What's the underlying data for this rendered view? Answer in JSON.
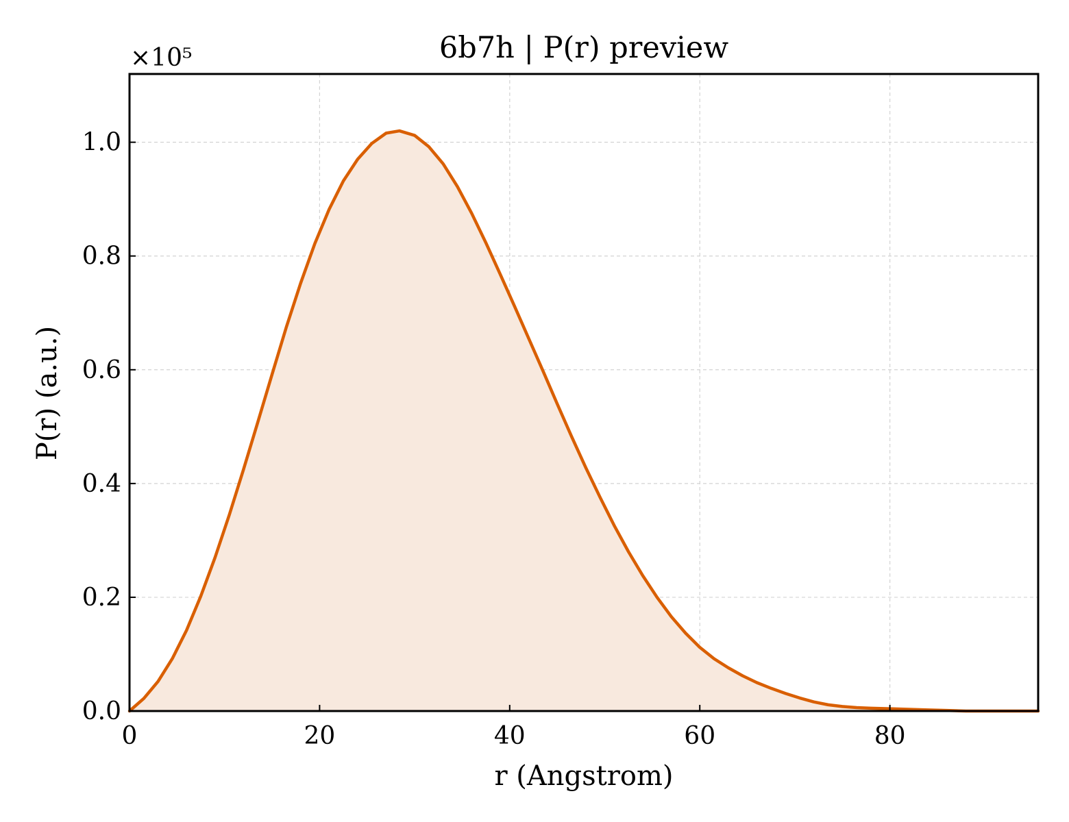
{
  "chart_data": {
    "type": "area",
    "title": "6b7h | P(r) preview",
    "xlabel": "r (Angstrom)",
    "ylabel": "P(r) (a.u.)",
    "y_multiplier_label": "×10⁵",
    "y_scale_factor": 100000,
    "xlim": [
      0,
      95.6
    ],
    "ylim": [
      0,
      1.12
    ],
    "xticks": [
      0,
      20,
      40,
      60,
      80
    ],
    "xtick_labels": [
      "0",
      "20",
      "40",
      "60",
      "80"
    ],
    "yticks": [
      0.0,
      0.2,
      0.4,
      0.6,
      0.8,
      1.0
    ],
    "ytick_labels": [
      "0.0",
      "0.2",
      "0.4",
      "0.6",
      "0.8",
      "1.0"
    ],
    "grid": true,
    "line_color": "#d95f02",
    "fill_color": "#f8e9de",
    "series": [
      {
        "x": [
          0,
          1.5,
          3,
          4.5,
          6,
          7.5,
          9,
          10.5,
          12,
          13.5,
          15,
          16.5,
          18,
          19.5,
          21,
          22.5,
          24,
          25.5,
          27,
          28.4,
          30,
          31.5,
          33,
          34.5,
          36,
          37.5,
          39,
          40.5,
          42,
          43.5,
          45,
          46.5,
          48,
          49.5,
          51,
          52.5,
          54,
          55.5,
          57,
          58.5,
          60,
          61.5,
          63,
          64.5,
          66,
          67.5,
          69,
          70.5,
          72,
          73.5,
          75,
          76.5,
          78,
          80,
          82,
          84,
          86,
          88,
          90,
          92,
          95.6
        ],
        "y": [
          0.0,
          0.022,
          0.052,
          0.092,
          0.142,
          0.202,
          0.27,
          0.345,
          0.425,
          0.508,
          0.592,
          0.675,
          0.752,
          0.822,
          0.882,
          0.932,
          0.97,
          0.998,
          1.016,
          1.02,
          1.012,
          0.992,
          0.962,
          0.922,
          0.875,
          0.823,
          0.768,
          0.712,
          0.655,
          0.598,
          0.54,
          0.483,
          0.428,
          0.376,
          0.326,
          0.28,
          0.238,
          0.2,
          0.166,
          0.137,
          0.112,
          0.092,
          0.076,
          0.062,
          0.05,
          0.04,
          0.031,
          0.023,
          0.016,
          0.011,
          0.008,
          0.006,
          0.005,
          0.004,
          0.003,
          0.002,
          0.001,
          0.0,
          0.0,
          0.0,
          0.0
        ]
      }
    ]
  }
}
